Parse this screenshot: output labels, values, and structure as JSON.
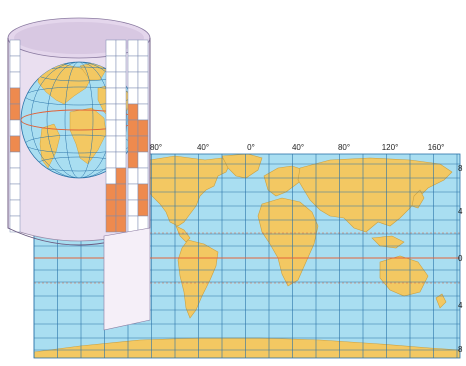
{
  "map": {
    "longitude_labels": [
      "80°",
      "40°",
      "0°",
      "40°",
      "80°",
      "120°",
      "160°"
    ],
    "latitude_labels": [
      "8",
      "4",
      "0",
      "4",
      "8"
    ]
  },
  "colors": {
    "ocean": "#a9def1",
    "grid": "#2a72a8",
    "land": "#f3c862",
    "land_edge": "#caa040",
    "equator": "#e3643a",
    "cylinder_outer": "#ffffff",
    "cylinder_inner": "#eadff0",
    "projected_land": "#ee8a4e"
  }
}
